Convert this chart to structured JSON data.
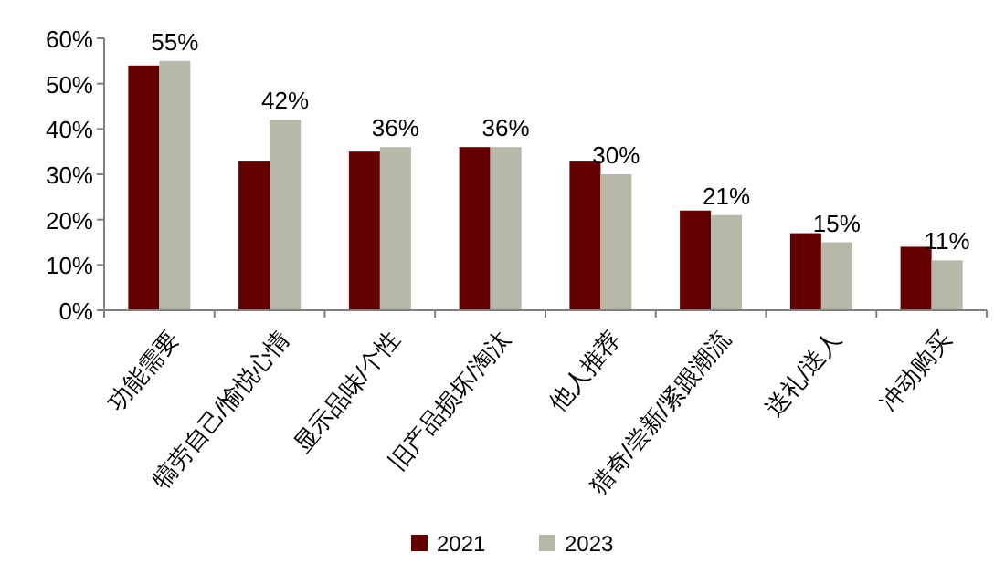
{
  "chart_data": {
    "type": "bar",
    "categories": [
      "功能需要",
      "犒劳自己/愉悦心情",
      "显示品味/个性",
      "旧产品损坏/淘汰",
      "他人推荐",
      "猎奇/尝新/紧跟潮流",
      "送礼/送人",
      "冲动购买"
    ],
    "series": [
      {
        "name": "2021",
        "color": "#630000",
        "values": [
          54,
          33,
          35,
          36,
          33,
          22,
          17,
          14
        ]
      },
      {
        "name": "2023",
        "color": "#b8b8a8",
        "values": [
          55,
          42,
          36,
          36,
          30,
          21,
          15,
          11
        ],
        "value_labels": [
          "55%",
          "42%",
          "36%",
          "36%",
          "30%",
          "21%",
          "15%",
          "11%"
        ]
      }
    ],
    "ylim": [
      0,
      60
    ],
    "yticks": [
      {
        "value": 0,
        "label": "0%"
      },
      {
        "value": 10,
        "label": "10%"
      },
      {
        "value": 20,
        "label": "20%"
      },
      {
        "value": 30,
        "label": "30%"
      },
      {
        "value": 40,
        "label": "40%"
      },
      {
        "value": 50,
        "label": "50%"
      },
      {
        "value": 60,
        "label": "60%"
      }
    ],
    "grid": false,
    "legend": "bottom"
  }
}
